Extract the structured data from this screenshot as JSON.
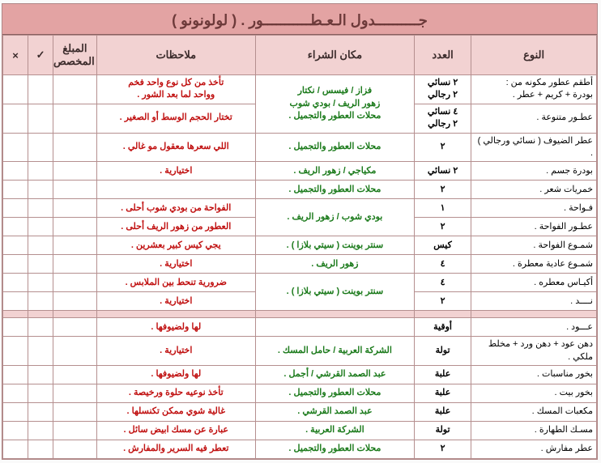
{
  "header_main": "جــــــــــدول الـعـطـــــــــــور .",
  "header_sub": "( لولونونو )",
  "columns": {
    "type": "النوع",
    "qty": "العدد",
    "place": "مكان الشراء",
    "notes": "ملاحظات",
    "budget": "المبلغ المخصص",
    "check": "✓",
    "x": "×"
  },
  "section1": [
    {
      "type": "أطقم عطور مكونه من :\nبودرة + كريم + عطر .",
      "qty": "٢ نسائي\n٢ رجالي",
      "place": "فزاز / فيسس / نكتار\nزهور الريف / بودي شوب\nمحلات العطور والتجميل .",
      "notes": "تأخذ من كل نوع واحد فخم\nوواحد لما بعد الشور .",
      "span": 2
    },
    {
      "type": "عطـور متنوعة .",
      "qty": "٤ نسائي\n٢ رجالي",
      "place": "",
      "notes": "تختار الحجم الوسط أو الصغير .",
      "share_place_notes": true
    },
    {
      "type": "عطر الضيوف ( نسائي ورجالي ) .",
      "qty": "٢",
      "place": "محلات العطور والتجميل .",
      "notes": "اللي سعرها معقول مو غالي ."
    },
    {
      "type": "بودرة جسم .",
      "qty": "٢ نسائي",
      "place": "مكياجي / زهور الريف .",
      "notes": "اختيارية ."
    },
    {
      "type": "خمريات شعر .",
      "qty": "٢",
      "place": "محلات العطور والتجميل .",
      "notes": ""
    },
    {
      "type": "فـواحة .",
      "qty": "١",
      "place_span": "بودي شوب / زهور الريف .",
      "notes": "الفواحة من بودي شوب أحلى ."
    },
    {
      "type": "عطـور الفواحة .",
      "qty": "٢",
      "place_shared": true,
      "notes": "العطور من زهور الريف أحلى ."
    },
    {
      "type": "شمـوع الفواحة .",
      "qty": "كيس",
      "place": "سنتر بوينت ( سيتي بلازا ) .",
      "notes": "يجي كيس كبير بعشرين ."
    },
    {
      "type": "شمـوع عادية معطرة .",
      "qty": "٤",
      "place": "زهور الريف .",
      "notes": "اختيارية ."
    },
    {
      "type": "أكيـاس معطره .",
      "qty": "٤",
      "place_span": "سنتر بوينت ( سيتي بلازا ) .",
      "notes": "ضرورية تنحط بين الملابس ."
    },
    {
      "type": "نــــد .",
      "qty": "٢",
      "place_shared": true,
      "notes": "اختيارية ."
    }
  ],
  "section2": [
    {
      "type": "عـــود .",
      "qty": "أوقية",
      "place": "",
      "notes": "لها ولضيوفها ."
    },
    {
      "type": "دهن عود + دهن ورد + مخلط ملكي .",
      "qty": "تولة",
      "place": "الشركة العربية / حامل المسك .",
      "notes": "اختيارية ."
    },
    {
      "type": "بخور مناسبات .",
      "qty": "علبة",
      "place": "عبد الصمد القرشي / أجمل .",
      "notes": "لها ولضيوفها ."
    },
    {
      "type": "بخور بيت .",
      "qty": "علبة",
      "place": "محلات العطور والتجميل .",
      "notes": "تأخذ نوعيه حلوة ورخيصة ."
    },
    {
      "type": "مكعبات المسك .",
      "qty": "علبة",
      "place": "عبد الصمد القرشي .",
      "notes": "غالية شوي ممكن تكنسلها ."
    },
    {
      "type": "مسـك الطهارة .",
      "qty": "تولة",
      "place": "الشركة العربية .",
      "notes": "عبارة عن مسك ابيض سائل ."
    },
    {
      "type": "عطر مفارش .",
      "qty": "٢",
      "place": "محلات العطور والتجميل .",
      "notes": "تعطر فيه السرير والمفارش ."
    }
  ],
  "colors": {
    "header_bg": "#e3a3a3",
    "th_bg": "#f2d2d2",
    "border": "#b58f8f",
    "type_text": "#000000",
    "place_text": "#1b7a1b",
    "notes_text": "#c01010"
  }
}
